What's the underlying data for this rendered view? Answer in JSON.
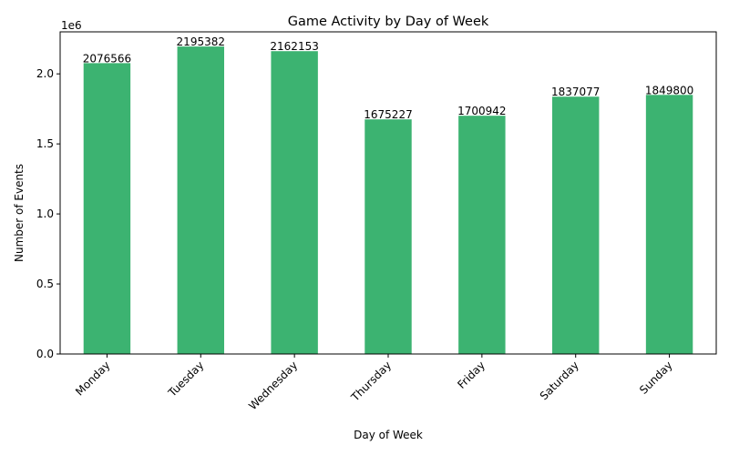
{
  "chart_data": {
    "type": "bar",
    "title": "Game Activity by Day of Week",
    "xlabel": "Day of Week",
    "ylabel": "Number of Events",
    "offset_label": "1e6",
    "categories": [
      "Monday",
      "Tuesday",
      "Wednesday",
      "Thursday",
      "Friday",
      "Saturday",
      "Sunday"
    ],
    "values": [
      2076566,
      2195382,
      2162153,
      1675227,
      1700942,
      1837077,
      1849800
    ],
    "data_labels": [
      "2076566",
      "2195382",
      "2162153",
      "1675227",
      "1700942",
      "1837077",
      "1849800"
    ],
    "ylim": [
      0,
      2300000
    ],
    "yticks": [
      0,
      500000,
      1000000,
      1500000,
      2000000
    ],
    "ytick_labels": [
      "0.0",
      "0.5",
      "1.0",
      "1.5",
      "2.0"
    ],
    "bar_color": "#3cb371",
    "grid": false,
    "legend": "none"
  }
}
